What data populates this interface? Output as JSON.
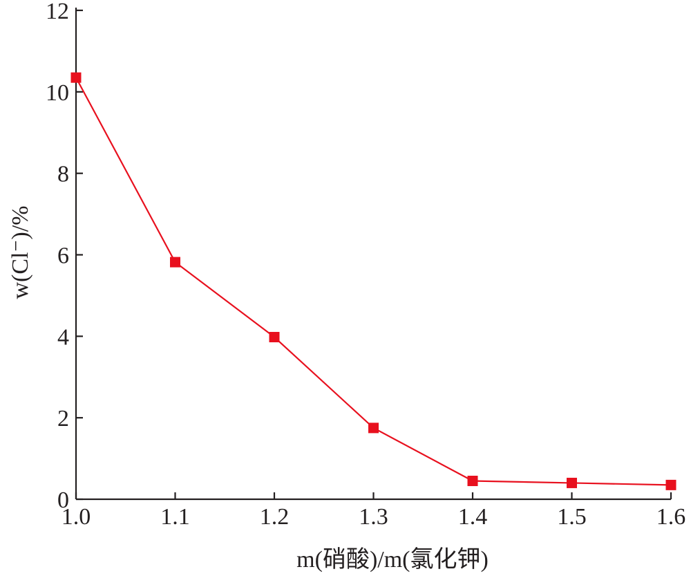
{
  "chart_data": {
    "type": "line",
    "xlabel": "m(硝酸)/m(氯化钾)",
    "ylabel": "w(Cl⁻)/%",
    "xlim": [
      1.0,
      1.6
    ],
    "ylim": [
      0,
      12
    ],
    "x_ticks": [
      "1.0",
      "1.1",
      "1.2",
      "1.3",
      "1.4",
      "1.5",
      "1.6"
    ],
    "y_ticks": [
      "0",
      "2",
      "4",
      "6",
      "8",
      "10",
      "12"
    ],
    "grid": false,
    "series": [
      {
        "color": "#e8101e",
        "marker": "square",
        "x": [
          1.0,
          1.1,
          1.2,
          1.3,
          1.4,
          1.5,
          1.6
        ],
        "y": [
          10.35,
          5.82,
          3.98,
          1.75,
          0.45,
          0.4,
          0.35
        ]
      }
    ]
  }
}
